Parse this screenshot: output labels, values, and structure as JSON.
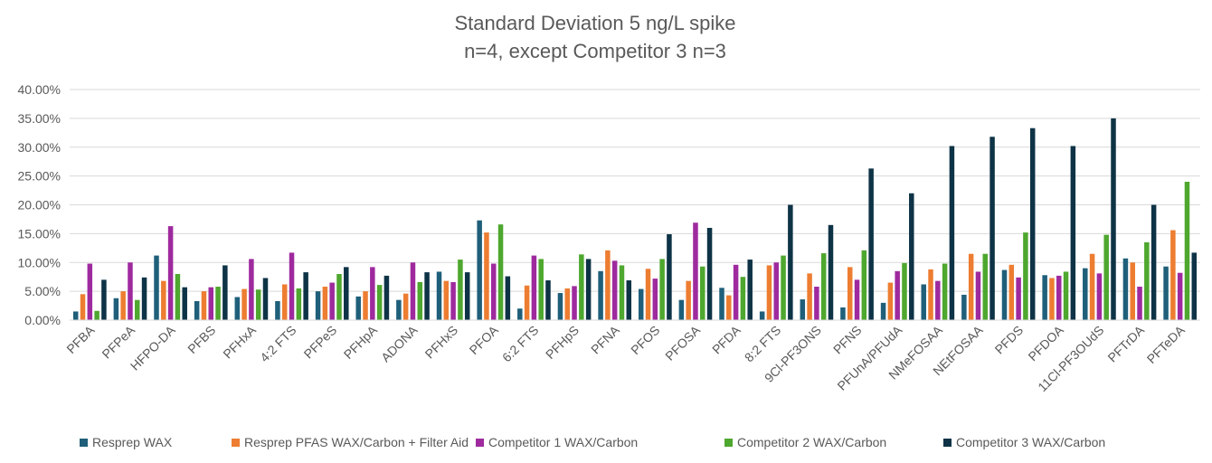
{
  "chart_data": {
    "type": "bar",
    "title": "Standard Deviation 5 ng/L spike",
    "subtitle": "n=4, except Competitor 3 n=3",
    "xlabel": "",
    "ylabel": "",
    "ylim": [
      0,
      40
    ],
    "yticks": [
      "0.00%",
      "5.00%",
      "10.00%",
      "15.00%",
      "20.00%",
      "25.00%",
      "30.00%",
      "35.00%",
      "40.00%"
    ],
    "grid": true,
    "legend_position": "bottom",
    "categories": [
      "PFBA",
      "PFPeA",
      "HFPO-DA",
      "PFBS",
      "PFHxA",
      "4:2 FTS",
      "PFPeS",
      "PFHpA",
      "ADONA",
      "PFHxS",
      "PFOA",
      "6:2 FTS",
      "PFHpS",
      "PFNA",
      "PFOS",
      "PFOSA",
      "PFDA",
      "8:2 FTS",
      "9Cl-PF3ONS",
      "PFNS",
      "PFUnA/PFUdA",
      "NMeFOSAA",
      "NEtFOSAA",
      "PFDS",
      "PFDOA",
      "11Cl-PF3OUdS",
      "PFTrDA",
      "PFTeDA"
    ],
    "series": [
      {
        "name": "Resprep WAX",
        "color": "#1f5f7a",
        "values": [
          1.5,
          3.8,
          11.2,
          3.3,
          4.0,
          3.3,
          5.0,
          4.1,
          3.5,
          8.4,
          17.3,
          2.0,
          4.7,
          8.5,
          5.4,
          3.5,
          5.6,
          1.5,
          3.6,
          2.2,
          3.0,
          6.2,
          4.4,
          8.7,
          7.8,
          9.0,
          10.7,
          9.3
        ]
      },
      {
        "name": "Resprep PFAS WAX/Carbon + Filter Aid",
        "color": "#ed7d31",
        "values": [
          4.5,
          5.0,
          6.8,
          5.0,
          5.4,
          6.2,
          5.8,
          5.0,
          4.6,
          6.8,
          15.2,
          6.0,
          5.5,
          12.1,
          8.9,
          6.8,
          4.3,
          9.5,
          8.1,
          9.2,
          6.5,
          8.8,
          11.5,
          9.6,
          7.3,
          11.5,
          10.0,
          15.6
        ]
      },
      {
        "name": "Competitor 1 WAX/Carbon",
        "color": "#9e2a9e",
        "values": [
          9.8,
          10.0,
          16.3,
          5.7,
          10.6,
          11.7,
          6.5,
          9.2,
          10.0,
          6.6,
          9.8,
          11.2,
          5.9,
          10.3,
          7.2,
          16.9,
          9.6,
          10.0,
          5.8,
          7.0,
          8.5,
          6.8,
          8.4,
          7.4,
          7.7,
          8.1,
          5.8,
          8.2
        ]
      },
      {
        "name": "Competitor 2 WAX/Carbon",
        "color": "#4ea72e",
        "values": [
          1.6,
          3.5,
          8.0,
          5.8,
          5.3,
          5.5,
          8.0,
          6.1,
          6.6,
          10.5,
          16.6,
          10.6,
          11.4,
          9.5,
          10.6,
          9.3,
          7.5,
          11.2,
          11.6,
          12.1,
          9.9,
          9.8,
          11.5,
          15.2,
          8.4,
          14.8,
          13.5,
          24.0
        ]
      },
      {
        "name": "Competitor 3 WAX/Carbon",
        "color": "#0e3346",
        "values": [
          7.0,
          7.4,
          5.7,
          9.5,
          7.3,
          8.3,
          9.2,
          7.7,
          8.3,
          8.3,
          7.6,
          6.9,
          10.6,
          6.9,
          14.9,
          16.0,
          10.5,
          20.0,
          16.5,
          26.3,
          22.0,
          30.2,
          31.8,
          33.3,
          30.2,
          35.0,
          20.0,
          11.7
        ]
      }
    ]
  }
}
